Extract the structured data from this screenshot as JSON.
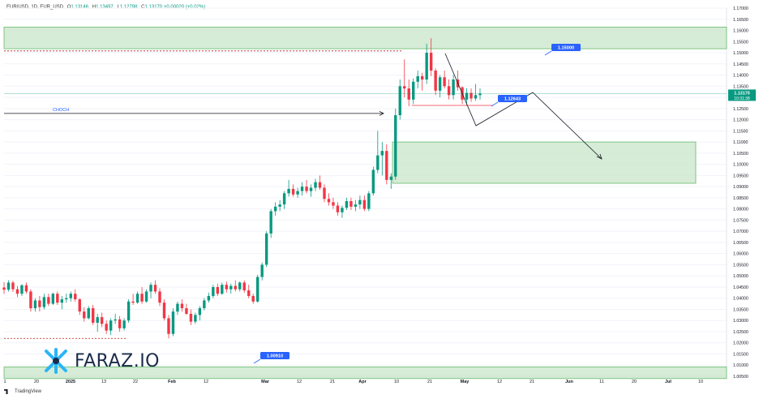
{
  "header": {
    "symbol": "EUR/USD, 1D, EUR_USD",
    "open_label": "O",
    "open": "1.13146",
    "high_label": "H",
    "high": "1.13497",
    "low_label": "L",
    "low": "1.12798",
    "close_label": "C",
    "close": "1.13170",
    "change": "+0.00020 (+0.02%)"
  },
  "footer": {
    "brand": "TradingView"
  },
  "watermark": {
    "text": "FARAZ.IO"
  },
  "colors": {
    "up": "#089981",
    "down": "#f23645",
    "zone_fill": "#c8e6c9",
    "zone_border": "#66bb6a",
    "label_blue": "#2962ff",
    "grid": "#f0f3fa",
    "text": "#131722"
  },
  "chart_data": {
    "type": "candlestick",
    "y_axis": {
      "min": 1.005,
      "max": 1.17,
      "position": "right",
      "tick_labels": [
        "1.17000",
        "1.16500",
        "1.16000",
        "1.15500",
        "1.15000",
        "1.14500",
        "1.14000",
        "1.13500",
        "1.13000",
        "1.12500",
        "1.12000",
        "1.11500",
        "1.11000",
        "1.10500",
        "1.10000",
        "1.09500",
        "1.09000",
        "1.08500",
        "1.08000",
        "1.07500",
        "1.07000",
        "1.06500",
        "1.06000",
        "1.05500",
        "1.05000",
        "1.04500",
        "1.04000",
        "1.03500",
        "1.03000",
        "1.02500",
        "1.02000",
        "1.01500",
        "1.01000",
        "1.00500"
      ]
    },
    "x_axis": {
      "tick_labels": [
        "1",
        "20",
        "2025",
        "13",
        "22",
        "Feb",
        "12",
        "Mar",
        "12",
        "21",
        "Apr",
        "10",
        "21",
        "May",
        "12",
        "21",
        "Jun",
        "11",
        "20",
        "Jul",
        "10"
      ],
      "bold_labels": [
        "2025",
        "Feb",
        "Mar",
        "Apr",
        "May",
        "Jun",
        "Jul"
      ]
    },
    "last_price": {
      "value": 1.1317,
      "label": "1.13170",
      "countdown": "10:31:38"
    },
    "zones": [
      {
        "name": "upper-supply-zone",
        "top": 1.1615,
        "bottom": 1.1518,
        "from_bar": 0,
        "to_bar": "end"
      },
      {
        "name": "target-demand-zone",
        "top": 1.11,
        "bottom": 1.0915,
        "from_bar": 120,
        "to_bar": 191
      },
      {
        "name": "lower-support-zone",
        "top": 1.0092,
        "bottom": 1.004,
        "from_bar": 0,
        "to_bar": "end"
      }
    ],
    "levels": [
      {
        "name": "1.15000",
        "value": 1.15,
        "label": "1.15000"
      },
      {
        "name": "1.12643",
        "value": 1.12643,
        "label": "1.12643"
      },
      {
        "name": "1.00910",
        "value": 1.0091,
        "label": "1.00910"
      }
    ],
    "annotations": [
      {
        "name": "choch",
        "text": "CHOCH",
        "value": 1.1228
      }
    ],
    "candles": [
      [
        1.0448,
        1.0472,
        1.042,
        1.0438
      ],
      [
        1.0438,
        1.048,
        1.043,
        1.047
      ],
      [
        1.047,
        1.0478,
        1.0428,
        1.044
      ],
      [
        1.044,
        1.0455,
        1.0405,
        1.042
      ],
      [
        1.042,
        1.0462,
        1.041,
        1.0458
      ],
      [
        1.0458,
        1.047,
        1.042,
        1.043
      ],
      [
        1.043,
        1.044,
        1.034,
        1.0355
      ],
      [
        1.0355,
        1.04,
        1.034,
        1.039
      ],
      [
        1.039,
        1.041,
        1.034,
        1.036
      ],
      [
        1.036,
        1.042,
        1.035,
        1.0405
      ],
      [
        1.0405,
        1.042,
        1.0365,
        1.0375
      ],
      [
        1.0375,
        1.0425,
        1.037,
        1.042
      ],
      [
        1.042,
        1.043,
        1.037,
        1.038
      ],
      [
        1.038,
        1.041,
        1.035,
        1.0395
      ],
      [
        1.0395,
        1.042,
        1.038,
        1.04
      ],
      [
        1.04,
        1.043,
        1.0385,
        1.042
      ],
      [
        1.042,
        1.044,
        1.0385,
        1.0395
      ],
      [
        1.0395,
        1.04,
        1.0325,
        1.034
      ],
      [
        1.034,
        1.036,
        1.0295,
        1.031
      ],
      [
        1.031,
        1.0365,
        1.0305,
        1.0355
      ],
      [
        1.0355,
        1.037,
        1.028,
        1.029
      ],
      [
        1.029,
        1.033,
        1.025,
        1.0315
      ],
      [
        1.0315,
        1.0335,
        1.027,
        1.0285
      ],
      [
        1.0285,
        1.03,
        1.024,
        1.0255
      ],
      [
        1.0255,
        1.031,
        1.0235,
        1.03
      ],
      [
        1.03,
        1.033,
        1.0285,
        1.0305
      ],
      [
        1.0305,
        1.032,
        1.025,
        1.0265
      ],
      [
        1.0265,
        1.031,
        1.0255,
        1.03
      ],
      [
        1.03,
        1.0395,
        1.029,
        1.0385
      ],
      [
        1.0385,
        1.042,
        1.037,
        1.038
      ],
      [
        1.038,
        1.043,
        1.0375,
        1.042
      ],
      [
        1.042,
        1.045,
        1.0375,
        1.0385
      ],
      [
        1.0385,
        1.044,
        1.038,
        1.043
      ],
      [
        1.043,
        1.047,
        1.04,
        1.046
      ],
      [
        1.046,
        1.048,
        1.042,
        1.043
      ],
      [
        1.043,
        1.0445,
        1.0365,
        1.038
      ],
      [
        1.038,
        1.0395,
        1.03,
        1.031
      ],
      [
        1.031,
        1.0325,
        1.022,
        1.024
      ],
      [
        1.024,
        1.0355,
        1.023,
        1.034
      ],
      [
        1.034,
        1.0385,
        1.0325,
        1.0375
      ],
      [
        1.0375,
        1.0395,
        1.034,
        1.0355
      ],
      [
        1.0355,
        1.0375,
        1.0325,
        1.033
      ],
      [
        1.033,
        1.035,
        1.028,
        1.0295
      ],
      [
        1.0295,
        1.0335,
        1.0285,
        1.0325
      ],
      [
        1.0325,
        1.0365,
        1.03,
        1.0355
      ],
      [
        1.0355,
        1.04,
        1.0345,
        1.039
      ],
      [
        1.039,
        1.0425,
        1.038,
        1.041
      ],
      [
        1.041,
        1.046,
        1.04,
        1.045
      ],
      [
        1.045,
        1.0465,
        1.041,
        1.042
      ],
      [
        1.042,
        1.047,
        1.0415,
        1.046
      ],
      [
        1.046,
        1.0475,
        1.0425,
        1.044
      ],
      [
        1.044,
        1.0465,
        1.042,
        1.0455
      ],
      [
        1.0455,
        1.048,
        1.043,
        1.044
      ],
      [
        1.044,
        1.0475,
        1.043,
        1.047
      ],
      [
        1.047,
        1.048,
        1.0425,
        1.0435
      ],
      [
        1.0435,
        1.046,
        1.04,
        1.041
      ],
      [
        1.041,
        1.042,
        1.0375,
        1.0385
      ],
      [
        1.0385,
        1.0505,
        1.038,
        1.0495
      ],
      [
        1.0495,
        1.056,
        1.048,
        1.055
      ],
      [
        1.055,
        1.07,
        1.054,
        1.069
      ],
      [
        1.069,
        1.08,
        1.067,
        1.079
      ],
      [
        1.079,
        1.083,
        1.077,
        1.081
      ],
      [
        1.081,
        1.084,
        1.079,
        1.082
      ],
      [
        1.082,
        1.088,
        1.08,
        1.087
      ],
      [
        1.087,
        1.093,
        1.0855,
        1.089
      ],
      [
        1.089,
        1.091,
        1.0855,
        1.0865
      ],
      [
        1.0865,
        1.0895,
        1.085,
        1.088
      ],
      [
        1.088,
        1.092,
        1.086,
        1.09
      ],
      [
        1.09,
        1.093,
        1.087,
        1.088
      ],
      [
        1.088,
        1.091,
        1.0855,
        1.0895
      ],
      [
        1.0895,
        1.0935,
        1.088,
        1.092
      ],
      [
        1.092,
        1.095,
        1.0885,
        1.0895
      ],
      [
        1.0895,
        1.091,
        1.083,
        1.0845
      ],
      [
        1.0845,
        1.087,
        1.0815,
        1.083
      ],
      [
        1.083,
        1.085,
        1.08,
        1.0815
      ],
      [
        1.0815,
        1.083,
        1.077,
        1.0785
      ],
      [
        1.0785,
        1.0815,
        1.076,
        1.0805
      ],
      [
        1.0805,
        1.085,
        1.0795,
        1.0835
      ],
      [
        1.0835,
        1.085,
        1.0795,
        1.081
      ],
      [
        1.081,
        1.084,
        1.079,
        1.082
      ],
      [
        1.082,
        1.086,
        1.08,
        1.084
      ],
      [
        1.084,
        1.086,
        1.079,
        1.08
      ],
      [
        1.08,
        1.088,
        1.079,
        1.087
      ],
      [
        1.087,
        1.099,
        1.086,
        1.0975
      ],
      [
        1.0975,
        1.115,
        1.096,
        1.104
      ],
      [
        1.104,
        1.11,
        1.095,
        1.106
      ],
      [
        1.106,
        1.109,
        1.091,
        1.093
      ],
      [
        1.093,
        1.096,
        1.089,
        1.0945
      ],
      [
        1.0945,
        1.125,
        1.093,
        1.122
      ],
      [
        1.122,
        1.138,
        1.12,
        1.135
      ],
      [
        1.135,
        1.147,
        1.13,
        1.134
      ],
      [
        1.134,
        1.138,
        1.126,
        1.129
      ],
      [
        1.129,
        1.1385,
        1.127,
        1.137
      ],
      [
        1.137,
        1.142,
        1.134,
        1.1395
      ],
      [
        1.1395,
        1.141,
        1.133,
        1.138
      ],
      [
        1.138,
        1.154,
        1.136,
        1.15
      ],
      [
        1.15,
        1.1565,
        1.1395,
        1.142
      ],
      [
        1.142,
        1.143,
        1.131,
        1.133
      ],
      [
        1.133,
        1.14,
        1.13,
        1.139
      ],
      [
        1.139,
        1.142,
        1.134,
        1.135
      ],
      [
        1.135,
        1.138,
        1.129,
        1.131
      ],
      [
        1.131,
        1.14,
        1.129,
        1.138
      ],
      [
        1.138,
        1.142,
        1.133,
        1.1345
      ],
      [
        1.1345,
        1.135,
        1.127,
        1.129
      ],
      [
        1.129,
        1.134,
        1.1265,
        1.132
      ],
      [
        1.132,
        1.134,
        1.128,
        1.1295
      ],
      [
        1.1295,
        1.136,
        1.1285,
        1.131
      ],
      [
        1.131,
        1.134,
        1.129,
        1.1317
      ]
    ]
  }
}
